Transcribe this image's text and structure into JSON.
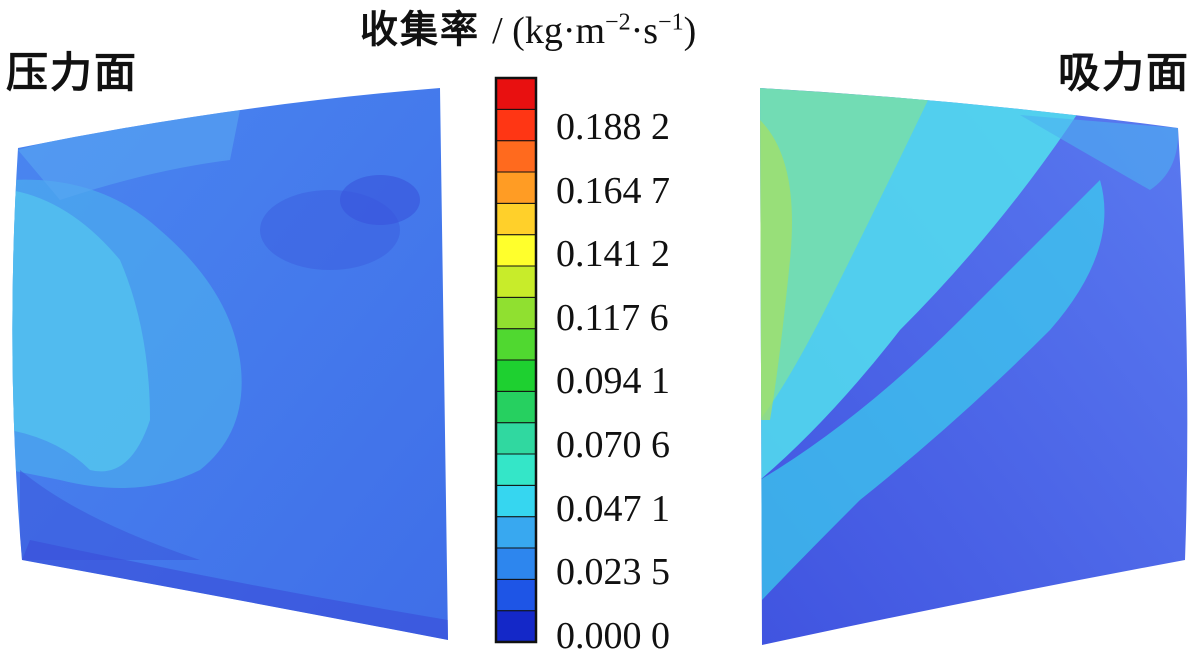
{
  "left_panel": {
    "label": "压力面"
  },
  "right_panel": {
    "label": "吸力面"
  },
  "colorbar": {
    "title_prefix": "收集率",
    "title_unit": "/ (kg·m",
    "sup1": "−2",
    "mid": "·s",
    "sup2": "−1",
    "close": ")",
    "ticks": [
      "0.188 2",
      "0.164 7",
      "0.141 2",
      "0.117 6",
      "0.094 1",
      "0.070 6",
      "0.047 1",
      "0.023 5",
      "0.000 0"
    ],
    "colors": [
      "#1428c8",
      "#1e55e6",
      "#2d86ee",
      "#38a8f0",
      "#36d6f0",
      "#34e6c8",
      "#30d8a0",
      "#26d060",
      "#1ed030",
      "#50d830",
      "#90e030",
      "#c8ec2a",
      "#ffff2c",
      "#ffd02a",
      "#ff9c24",
      "#ff6a1e",
      "#ff3614",
      "#e81010"
    ]
  }
}
